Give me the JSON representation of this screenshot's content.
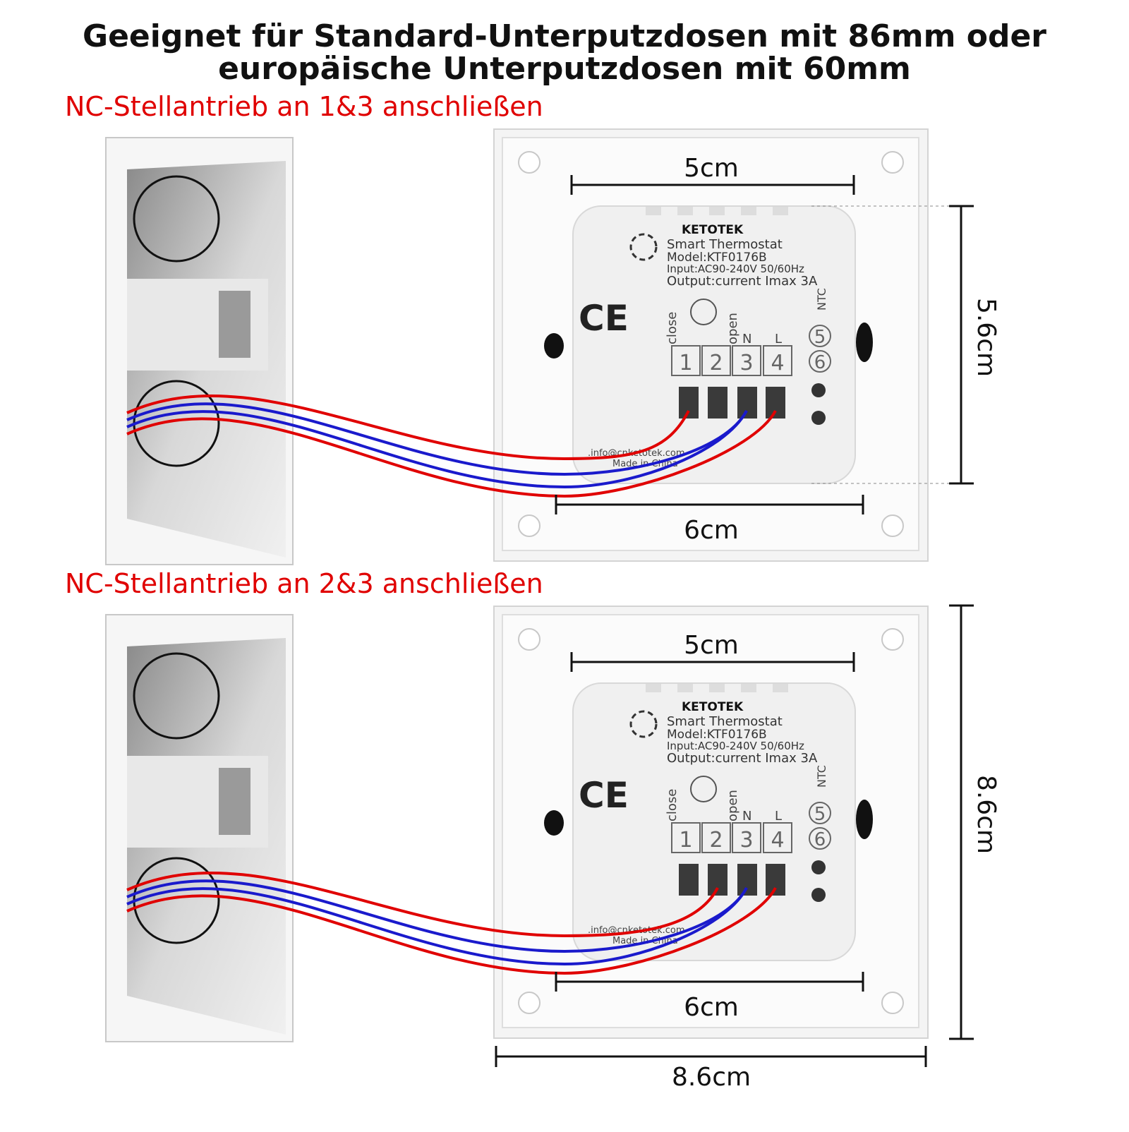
{
  "header": {
    "title_lines": [
      "Geeignet für Standard-Unterputzdosen mit 86mm oder",
      "europäische Unterputzdosen mit 60mm"
    ]
  },
  "panels": [
    {
      "caption": "NC-Stellantrieb an 1&3 anschließen",
      "dimensions": {
        "width_top": "5cm",
        "width_bottom": "6cm",
        "height_right": "5.6cm"
      },
      "device": {
        "brand": "KETOTEK",
        "product": "Smart Thermostat",
        "model": "Model:KTF0176B",
        "input": "Input:AC90-240V 50/60Hz",
        "output": "Output:current Imax 3A",
        "ce": "CE",
        "terminal_names": [
          "close",
          "open",
          "N",
          "L",
          "NTC"
        ],
        "terminals": [
          "1",
          "2",
          "3",
          "4",
          "5",
          "6"
        ],
        "email": ".info@cnketotek.com",
        "origin": "Made in China"
      }
    },
    {
      "caption": "NC-Stellantrieb an 2&3 anschließen",
      "dimensions": {
        "width_top": "5cm",
        "width_bottom": "6cm",
        "height_outer": "8.6cm",
        "width_outer": "8.6cm"
      },
      "device": {
        "brand": "KETOTEK",
        "product": "Smart Thermostat",
        "model": "Model:KTF0176B",
        "input": "Input:AC90-240V 50/60Hz",
        "output": "Output:current Imax 3A",
        "ce": "CE",
        "terminal_names": [
          "close",
          "open",
          "N",
          "L",
          "NTC"
        ],
        "terminals": [
          "1",
          "2",
          "3",
          "4",
          "5",
          "6"
        ],
        "email": ".info@cnketotek.com",
        "origin": "Made in China"
      }
    }
  ]
}
